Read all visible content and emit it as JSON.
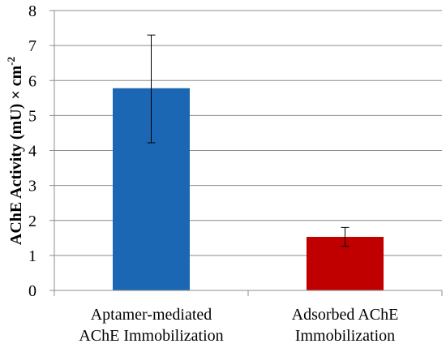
{
  "chart_data": {
    "type": "bar",
    "title": "",
    "ylabel": {
      "main": "AChE Activity (mU) × cm",
      "superscript": "-2"
    },
    "xlabel": "",
    "ylim": [
      0,
      8
    ],
    "yticks": [
      "0",
      "1",
      "2",
      "3",
      "4",
      "5",
      "6",
      "7",
      "8"
    ],
    "grid": true,
    "categories": [
      {
        "line1": "Aptamer-mediated",
        "line2": "AChE Immobilization"
      },
      {
        "line1": "Adsorbed AChE",
        "line2": "Immobilization"
      }
    ],
    "values": [
      5.78,
      1.53
    ],
    "error_low": [
      4.22,
      1.26
    ],
    "error_high": [
      7.3,
      1.8
    ],
    "colors": [
      "#1b67b3",
      "#c00000"
    ]
  }
}
